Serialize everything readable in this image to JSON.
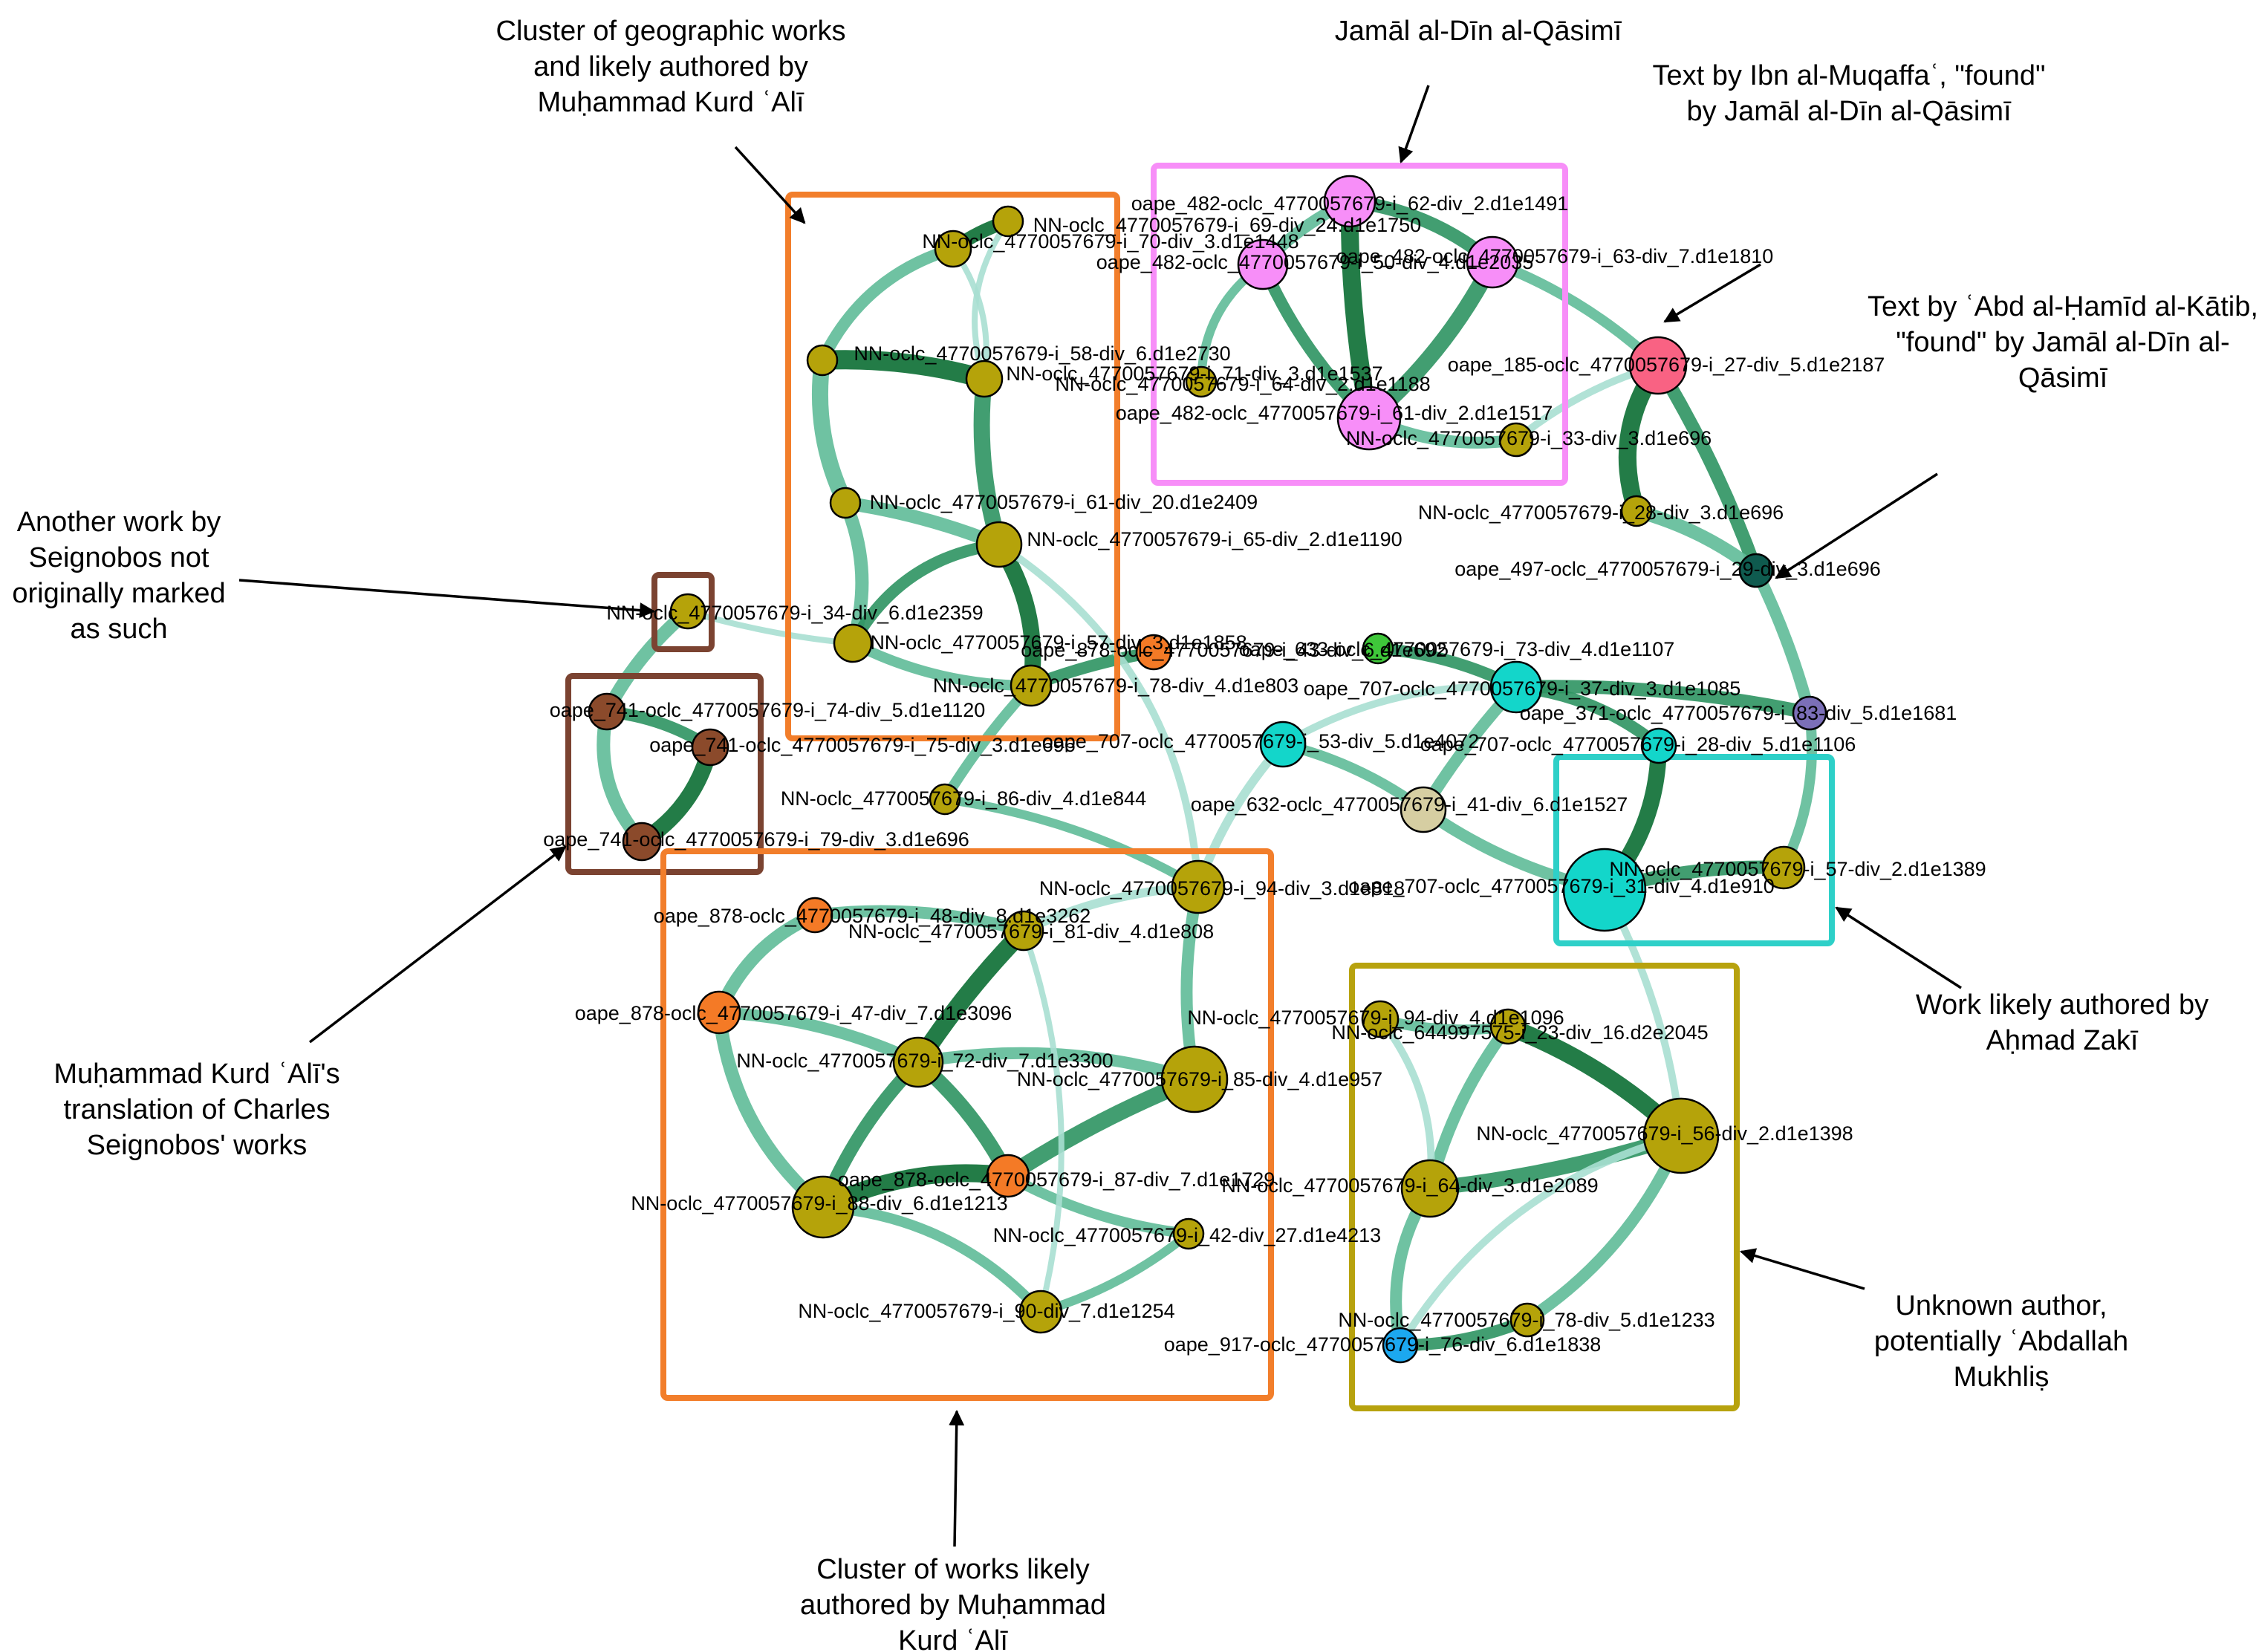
{
  "colors": {
    "palette": {
      "olive": "#b5a30a",
      "orange": "#f47a26",
      "magenta": "#f78ef8",
      "pink": "#f96283",
      "brown": "#8b4a2b",
      "darkteal": "#0f5b4f",
      "purple": "#7b6fb8",
      "cyan": "#13d6ca",
      "tan": "#d6cea2",
      "green": "#3fc73a",
      "blue": "#1ca8f0"
    },
    "edge_strong": "#0b6e33",
    "edge_mid": "#2e9462",
    "edge_light": "#5fbb98",
    "edge_pale": "#a9dfd2",
    "box_orange": "#f27e2b",
    "box_magenta": "#f78ef8",
    "box_brown": "#7b4331",
    "box_cyan": "#2ed0c8",
    "box_olive": "#b7a20e"
  },
  "nodes": [
    {
      "id": "n1",
      "label": "NN-oclc_4770057679-i_69-div_24.d1e1750",
      "color": "olive"
    },
    {
      "id": "n2",
      "label": "NN-oclc_4770057679-i_70-div_3.d1e1448",
      "color": "olive"
    },
    {
      "id": "n3",
      "label": "NN-oclc_4770057679-i_58-div_6.d1e2730",
      "color": "olive"
    },
    {
      "id": "n4",
      "label": "NN-oclc_4770057679-i_71-div_3.d1e1537",
      "color": "olive"
    },
    {
      "id": "n5",
      "label": "NN-oclc_4770057679-i_61-div_20.d1e2409",
      "color": "olive"
    },
    {
      "id": "n6",
      "label": "NN-oclc_4770057679-i_65-div_2.d1e1190",
      "color": "olive"
    },
    {
      "id": "n7",
      "label": "NN-oclc_4770057679-i_57-div_3.d1e1858",
      "color": "olive"
    },
    {
      "id": "n8",
      "label": "NN-oclc_4770057679-i_78-div_4.d1e803",
      "color": "olive"
    },
    {
      "id": "n9",
      "label": "oape_878-oclc_4770057679-i_43-div_6.d1e692",
      "color": "orange"
    },
    {
      "id": "n10",
      "label": "NN-oclc_4770057679-i_34-div_6.d1e2359",
      "color": "olive"
    },
    {
      "id": "n11",
      "label": "oape_741-oclc_4770057679-i_74-div_5.d1e1120",
      "color": "brown"
    },
    {
      "id": "n12",
      "label": "oape_741-oclc_4770057679-i_75-div_3.d1e696",
      "color": "brown"
    },
    {
      "id": "n13",
      "label": "oape_741-oclc_4770057679-i_79-div_3.d1e696",
      "color": "brown"
    },
    {
      "id": "n14",
      "label": "NN-oclc_4770057679-i_86-div_4.d1e844",
      "color": "olive"
    },
    {
      "id": "n15",
      "label": "oape_482-oclc_4770057679-i_62-div_2.d1e1491",
      "color": "magenta"
    },
    {
      "id": "n16",
      "label": "oape_482-oclc_4770057679-i_50-div_4.d1e2035",
      "color": "magenta"
    },
    {
      "id": "n17",
      "label": "oape_482-oclc_4770057679-i_63-div_7.d1e1810",
      "color": "magenta"
    },
    {
      "id": "n18",
      "label": "NN-oclc_4770057679-i_64-div_2.d1e1188",
      "color": "olive"
    },
    {
      "id": "n19",
      "label": "oape_482-oclc_4770057679-i_61-div_2.d1e1517",
      "color": "magenta"
    },
    {
      "id": "n20",
      "label": "NN-oclc_4770057679-i_33-div_3.d1e696",
      "color": "olive"
    },
    {
      "id": "n21",
      "label": "oape_185-oclc_4770057679-i_27-div_5.d1e2187",
      "color": "pink"
    },
    {
      "id": "n22",
      "label": "NN-oclc_4770057679-i_28-div_3.d1e696",
      "color": "olive"
    },
    {
      "id": "n23",
      "label": "oape_497-oclc_4770057679-i_29-div_3.d1e696",
      "color": "darkteal"
    },
    {
      "id": "n24",
      "label": "oape_633-oclc_4770057679-i_73-div_4.d1e1107",
      "color": "green"
    },
    {
      "id": "n25",
      "label": "oape_707-oclc_4770057679-i_37-div_3.d1e1085",
      "color": "cyan"
    },
    {
      "id": "n26",
      "label": "oape_371-oclc_4770057679-i_83-div_5.d1e1681",
      "color": "purple"
    },
    {
      "id": "n27",
      "label": "oape_707-oclc_4770057679-i_53-div_5.d1e4072",
      "color": "cyan"
    },
    {
      "id": "n28",
      "label": "oape_707-oclc_4770057679-i_28-div_5.d1e1106",
      "color": "cyan"
    },
    {
      "id": "n29",
      "label": "oape_632-oclc_4770057679-i_41-div_6.d1e1527",
      "color": "tan"
    },
    {
      "id": "n30",
      "label": "NN-oclc_4770057679-i_57-div_2.d1e1389",
      "color": "olive"
    },
    {
      "id": "n31",
      "label": "oape_707-oclc_4770057679-i_31-div_4.d1e910",
      "color": "cyan"
    },
    {
      "id": "n32",
      "label": "NN-oclc_4770057679-i_94-div_3.d1e818",
      "color": "olive"
    },
    {
      "id": "n33",
      "label": "oape_878-oclc_4770057679-i_48-div_8.d1e3262",
      "color": "orange"
    },
    {
      "id": "n34",
      "label": "NN-oclc_4770057679-i_81-div_4.d1e808",
      "color": "olive"
    },
    {
      "id": "n35",
      "label": "oape_878-oclc_4770057679-i_47-div_7.d1e3096",
      "color": "orange"
    },
    {
      "id": "n36",
      "label": "NN-oclc_4770057679-i_72-div_7.d1e3300",
      "color": "olive"
    },
    {
      "id": "n37",
      "label": "NN-oclc_4770057679-i_85-div_4.d1e957",
      "color": "olive"
    },
    {
      "id": "n38",
      "label": "oape_878-oclc_4770057679-i_87-div_7.d1e1729",
      "color": "orange"
    },
    {
      "id": "n39",
      "label": "NN-oclc_4770057679-i_88-div_6.d1e1213",
      "color": "olive"
    },
    {
      "id": "n40",
      "label": "NN-oclc_4770057679-i_42-div_27.d1e4213",
      "color": "olive"
    },
    {
      "id": "n41",
      "label": "NN-oclc_4770057679-i_90-div_7.d1e1254",
      "color": "olive"
    },
    {
      "id": "n42",
      "label": "NN-oclc_4770057679-i_94-div_4.d1e1096",
      "color": "olive"
    },
    {
      "id": "n43",
      "label": "NN-oclc_644997575-i_23-div_16.d2e2045",
      "color": "olive"
    },
    {
      "id": "n44",
      "label": "NN-oclc_4770057679-i_56-div_2.d1e1398",
      "color": "olive"
    },
    {
      "id": "n45",
      "label": "NN-oclc_4770057679-i_64-div_3.d1e2089",
      "color": "olive"
    },
    {
      "id": "n46",
      "label": "NN-oclc_4770057679-i_78-div_5.d1e1233",
      "color": "olive"
    },
    {
      "id": "n47",
      "label": "oape_917-oclc_4770057679-i_76-div_6.d1e1838",
      "color": "blue"
    }
  ],
  "annotations": [
    {
      "id": "a1",
      "lines": [
        "Cluster of geographic works",
        "and likely authored by",
        "Muḥammad Kurd ʿAlī"
      ]
    },
    {
      "id": "a2",
      "lines": [
        "Jamāl al-Dīn al-Qāsimī"
      ]
    },
    {
      "id": "a3",
      "lines": [
        "Text by Ibn al-Muqaffaʿ, \"found\"",
        "by Jamāl al-Dīn al-Qāsimī"
      ]
    },
    {
      "id": "a4",
      "lines": [
        "Text by ʿAbd al-Ḥamīd al-Kātib,",
        "\"found\" by Jamāl al-Dīn al-",
        "Qāsimī"
      ]
    },
    {
      "id": "a5",
      "lines": [
        "Another work by",
        "Seignobos not",
        "originally marked",
        "as such"
      ]
    },
    {
      "id": "a6",
      "lines": [
        "Muḥammad Kurd ʿAlī's",
        "translation of Charles",
        "Seignobos' works"
      ]
    },
    {
      "id": "a7",
      "lines": [
        "Work likely authored by",
        "Aḥmad Zakī"
      ]
    },
    {
      "id": "a8",
      "lines": [
        "Unknown author,",
        "potentially ʿAbdallah",
        "Mukhliṣ"
      ]
    },
    {
      "id": "a9",
      "lines": [
        "Cluster of works likely",
        "authored by Muḥammad",
        "Kurd ʿAlī"
      ]
    }
  ]
}
